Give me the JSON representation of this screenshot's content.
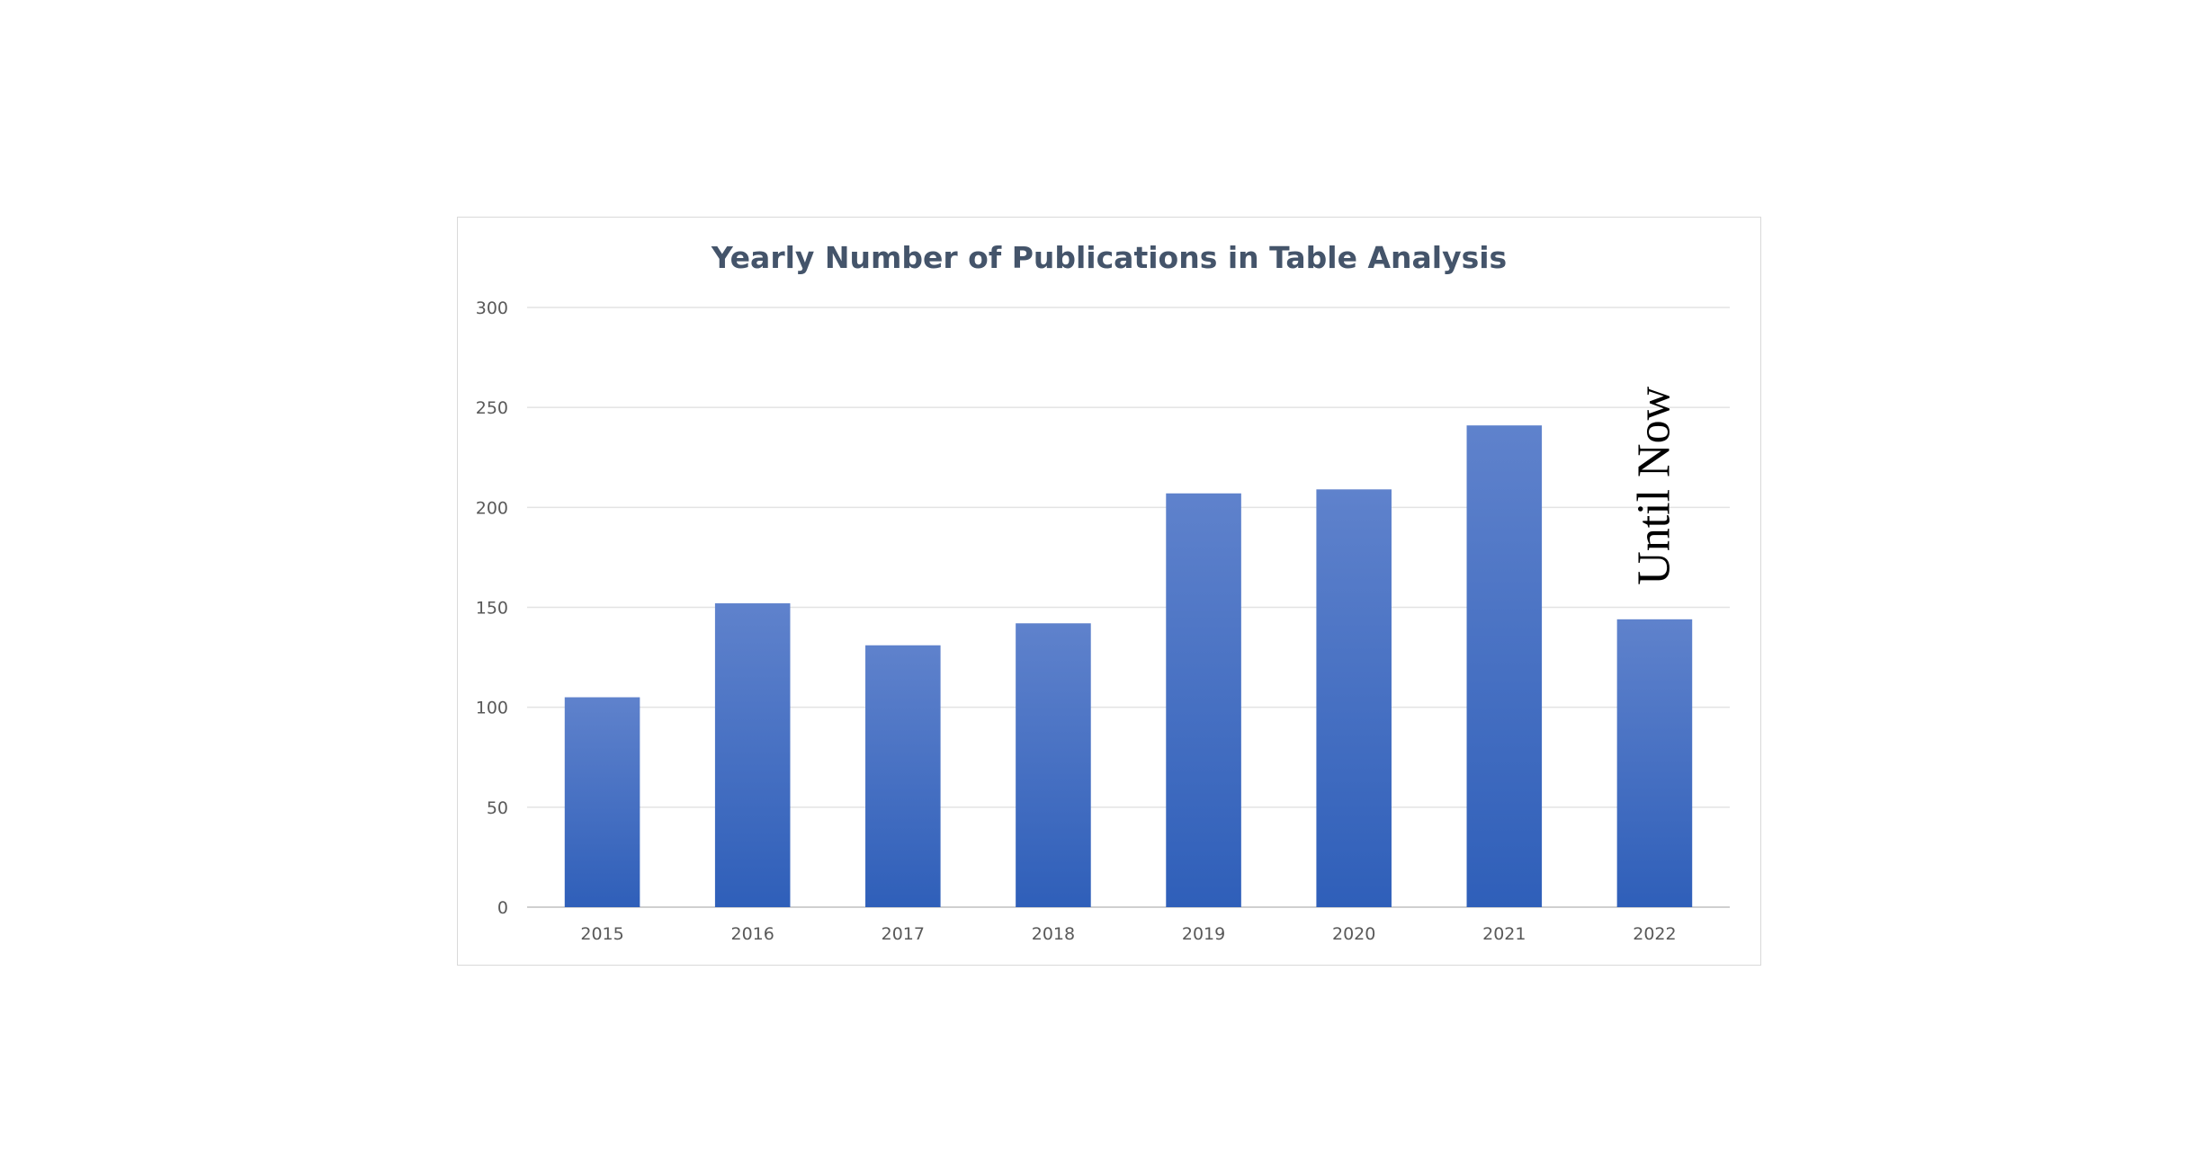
{
  "chart_data": {
    "type": "bar",
    "title": "Yearly Number of Publications in Table Analysis",
    "xlabel": "",
    "ylabel": "",
    "categories": [
      "2015",
      "2016",
      "2017",
      "2018",
      "2019",
      "2020",
      "2021",
      "2022"
    ],
    "series": [
      {
        "values": [
          105,
          152,
          131,
          142,
          207,
          209,
          241,
          144
        ]
      }
    ],
    "ylim": [
      0,
      300
    ],
    "yticks": [
      0,
      50,
      100,
      150,
      200,
      250,
      300
    ],
    "grid": true,
    "legend": "none",
    "bar_color": "#4472c4",
    "bar_color_light": "#5f82cc",
    "bar_color_dark": "#2f5fb9",
    "annotations": [
      {
        "category": "2022",
        "text": "Until Now",
        "orientation": "vertical"
      }
    ]
  }
}
